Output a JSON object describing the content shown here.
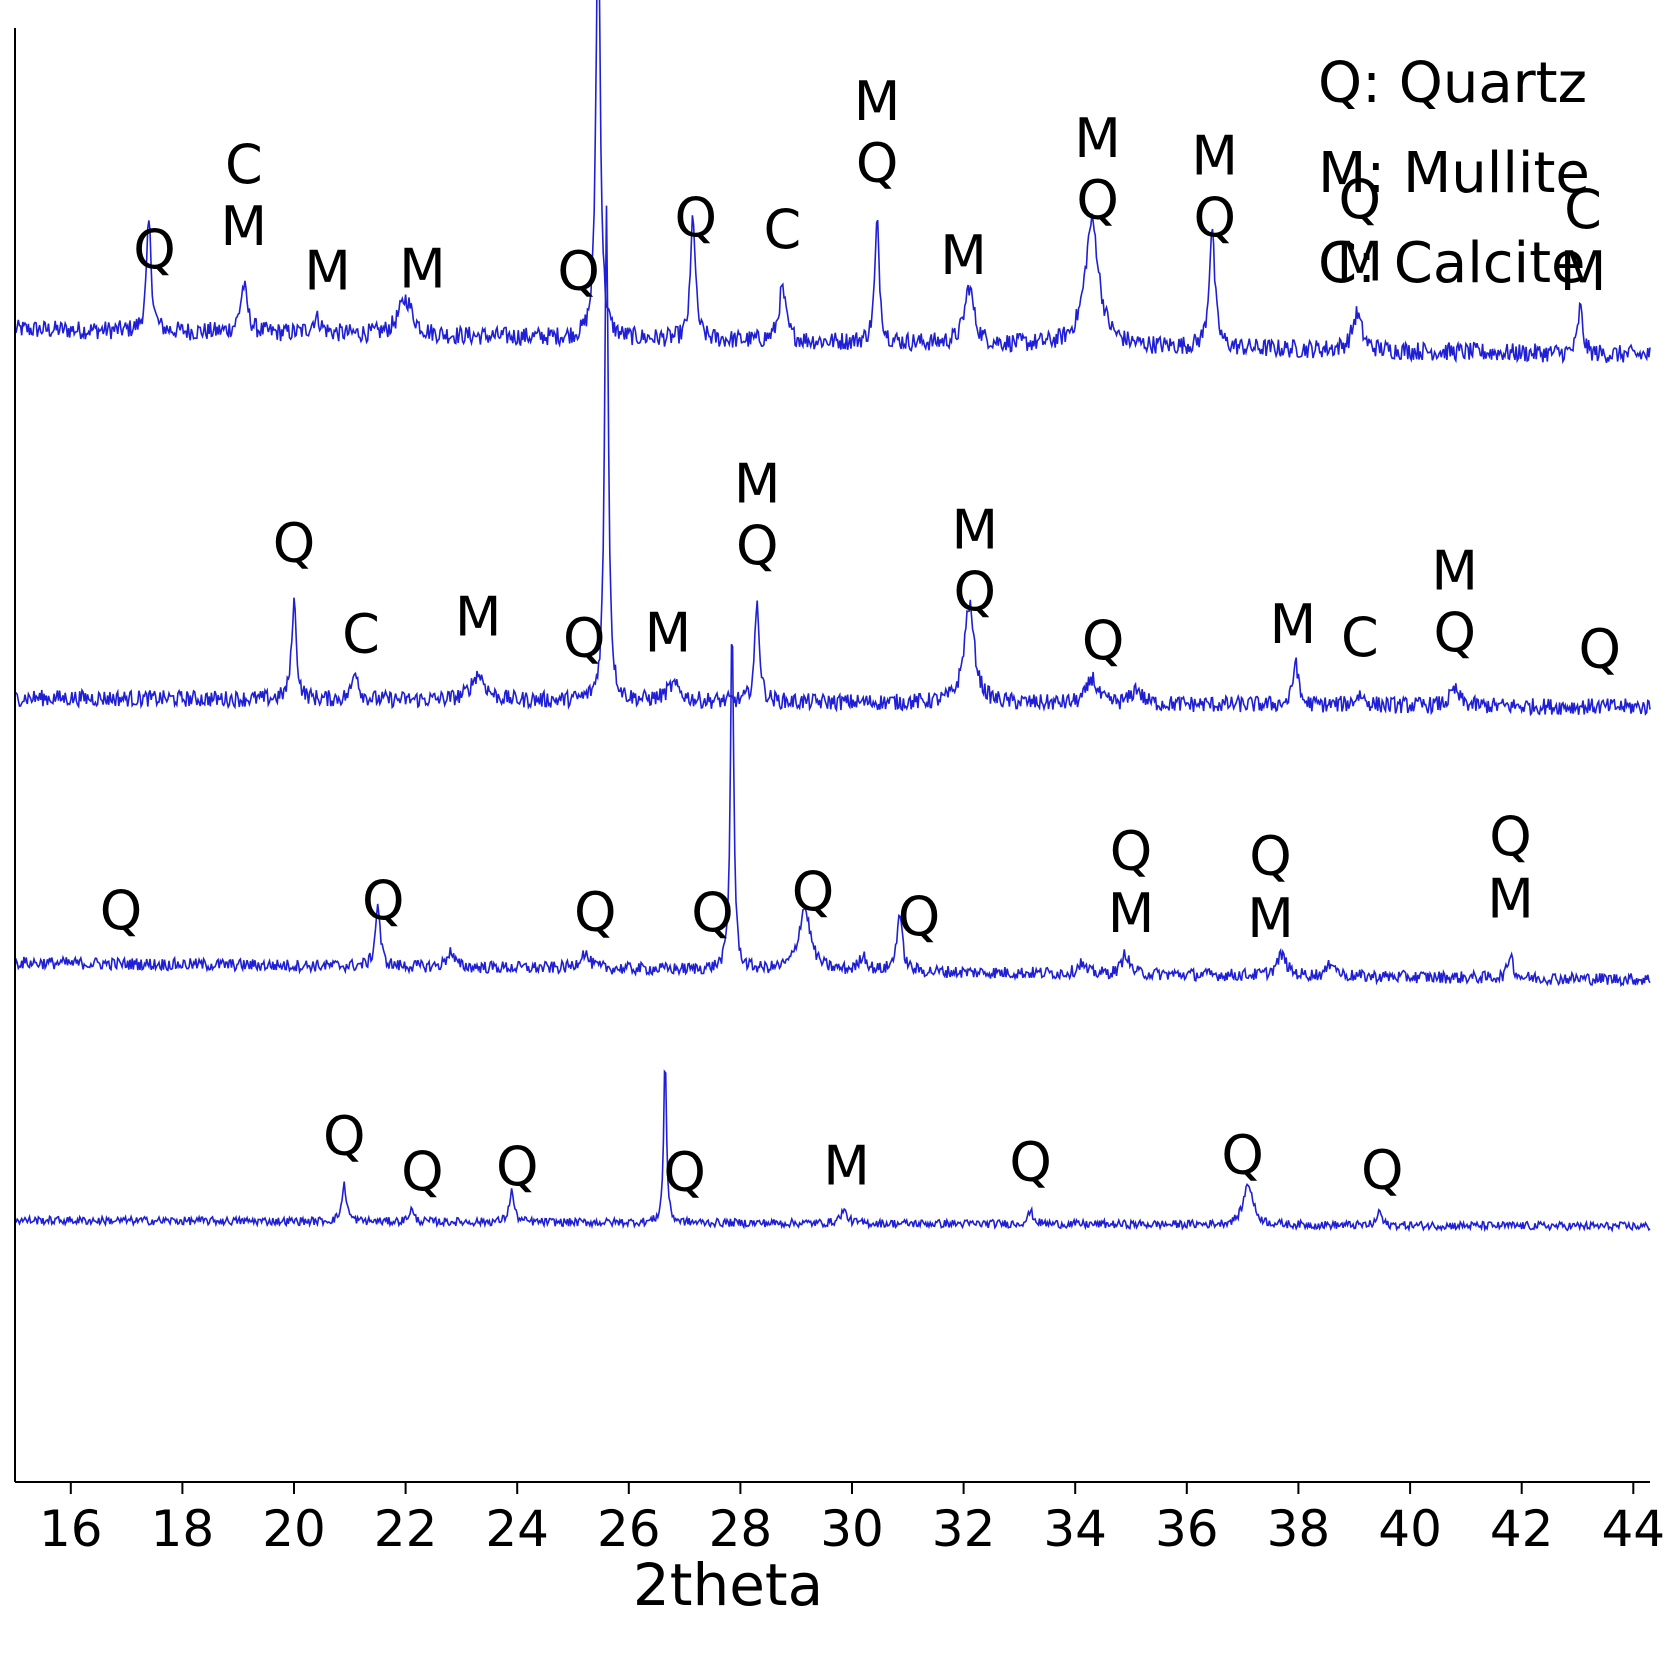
{
  "chart_data": {
    "type": "line",
    "title": "",
    "xlabel": "2theta",
    "ylabel": "",
    "xlim": [
      15,
      44.3
    ],
    "ylim": [
      0,
      14
    ],
    "x_ticks": [
      16,
      18,
      20,
      22,
      24,
      26,
      28,
      30,
      32,
      34,
      36,
      38,
      40,
      42,
      44
    ],
    "x_tick_labels": [
      "16",
      "18",
      "20",
      "22",
      "24",
      "26",
      "28",
      "30",
      "32",
      "34",
      "36",
      "38",
      "40",
      "42",
      "44"
    ],
    "grid": false,
    "y_axis_ticks_shown": false,
    "line_color": "#1f1fd6",
    "legend": {
      "placement": "top-right",
      "entries": [
        "Q: Quartz",
        "M: Mullite",
        "C: Calcite"
      ]
    },
    "series": [
      {
        "baseline": 11.1,
        "baseline_slope": -0.0085,
        "noise": 0.09,
        "peaks": [
          {
            "x": 17.4,
            "h": 1.05,
            "w": 0.1
          },
          {
            "x": 19.1,
            "h": 0.45,
            "w": 0.15
          },
          {
            "x": 20.4,
            "h": 0.15,
            "w": 0.2
          },
          {
            "x": 22.0,
            "h": 0.35,
            "w": 0.3
          },
          {
            "x": 25.45,
            "h": 4.3,
            "w": 0.09
          },
          {
            "x": 27.15,
            "h": 1.2,
            "w": 0.1
          },
          {
            "x": 28.75,
            "h": 0.5,
            "w": 0.15
          },
          {
            "x": 30.45,
            "h": 1.15,
            "w": 0.1
          },
          {
            "x": 32.1,
            "h": 0.55,
            "w": 0.2
          },
          {
            "x": 34.3,
            "h": 1.2,
            "w": 0.3
          },
          {
            "x": 36.45,
            "h": 1.15,
            "w": 0.12
          },
          {
            "x": 39.05,
            "h": 0.35,
            "w": 0.2
          },
          {
            "x": 43.05,
            "h": 0.45,
            "w": 0.1
          }
        ],
        "peak_labels": [
          {
            "x": 17.5,
            "lines": [
              "Q"
            ]
          },
          {
            "x": 19.1,
            "lines": [
              "C",
              "M"
            ]
          },
          {
            "x": 20.6,
            "lines": [
              "M"
            ]
          },
          {
            "x": 22.3,
            "lines": [
              "M"
            ]
          },
          {
            "x": 25.1,
            "lines": [
              "Q"
            ]
          },
          {
            "x": 27.2,
            "lines": [
              "Q"
            ]
          },
          {
            "x": 28.75,
            "lines": [
              "C"
            ]
          },
          {
            "x": 30.45,
            "lines": [
              "M",
              "Q"
            ]
          },
          {
            "x": 32.0,
            "lines": [
              "M"
            ]
          },
          {
            "x": 34.4,
            "lines": [
              "M",
              "Q"
            ]
          },
          {
            "x": 36.5,
            "lines": [
              "M",
              "Q"
            ]
          },
          {
            "x": 39.1,
            "lines": [
              "Q",
              "M"
            ]
          },
          {
            "x": 43.1,
            "lines": [
              "C",
              "M"
            ]
          }
        ]
      },
      {
        "baseline": 7.55,
        "baseline_slope": -0.003,
        "noise": 0.08,
        "peaks": [
          {
            "x": 20.0,
            "h": 0.95,
            "w": 0.1
          },
          {
            "x": 21.1,
            "h": 0.3,
            "w": 0.12
          },
          {
            "x": 23.3,
            "h": 0.25,
            "w": 0.3
          },
          {
            "x": 25.6,
            "h": 4.8,
            "w": 0.08
          },
          {
            "x": 26.8,
            "h": 0.15,
            "w": 0.3
          },
          {
            "x": 28.3,
            "h": 0.95,
            "w": 0.1
          },
          {
            "x": 32.1,
            "h": 0.95,
            "w": 0.22
          },
          {
            "x": 34.3,
            "h": 0.25,
            "w": 0.2
          },
          {
            "x": 35.1,
            "h": 0.15,
            "w": 0.2
          },
          {
            "x": 37.95,
            "h": 0.45,
            "w": 0.1
          },
          {
            "x": 39.1,
            "h": 0.1,
            "w": 0.2
          },
          {
            "x": 40.8,
            "h": 0.15,
            "w": 0.2
          }
        ],
        "peak_labels": [
          {
            "x": 20.0,
            "lines": [
              "Q"
            ]
          },
          {
            "x": 21.2,
            "lines": [
              "C"
            ]
          },
          {
            "x": 23.3,
            "lines": [
              "M"
            ]
          },
          {
            "x": 25.2,
            "lines": [
              "Q"
            ]
          },
          {
            "x": 26.7,
            "lines": [
              "M"
            ]
          },
          {
            "x": 28.3,
            "lines": [
              "M",
              "Q"
            ]
          },
          {
            "x": 32.2,
            "lines": [
              "M",
              "Q"
            ]
          },
          {
            "x": 34.5,
            "lines": [
              "Q"
            ]
          },
          {
            "x": 37.9,
            "lines": [
              "M"
            ]
          },
          {
            "x": 39.1,
            "lines": [
              "C"
            ]
          },
          {
            "x": 40.8,
            "lines": [
              "M",
              "Q"
            ]
          },
          {
            "x": 43.4,
            "lines": [
              "Q"
            ]
          }
        ]
      },
      {
        "baseline": 5.0,
        "baseline_slope": -0.0055,
        "noise": 0.06,
        "peaks": [
          {
            "x": 21.5,
            "h": 0.6,
            "w": 0.1
          },
          {
            "x": 22.8,
            "h": 0.15,
            "w": 0.15
          },
          {
            "x": 25.2,
            "h": 0.15,
            "w": 0.2
          },
          {
            "x": 27.85,
            "h": 3.4,
            "w": 0.07
          },
          {
            "x": 29.15,
            "h": 0.6,
            "w": 0.25
          },
          {
            "x": 30.2,
            "h": 0.15,
            "w": 0.15
          },
          {
            "x": 30.85,
            "h": 0.55,
            "w": 0.12
          },
          {
            "x": 34.1,
            "h": 0.1,
            "w": 0.15
          },
          {
            "x": 34.9,
            "h": 0.2,
            "w": 0.15
          },
          {
            "x": 37.7,
            "h": 0.2,
            "w": 0.2
          },
          {
            "x": 38.6,
            "h": 0.15,
            "w": 0.15
          },
          {
            "x": 41.8,
            "h": 0.25,
            "w": 0.1
          }
        ],
        "peak_labels": [
          {
            "x": 16.9,
            "lines": [
              "Q"
            ]
          },
          {
            "x": 21.6,
            "lines": [
              "Q"
            ]
          },
          {
            "x": 25.4,
            "lines": [
              "Q"
            ]
          },
          {
            "x": 27.5,
            "lines": [
              "Q"
            ]
          },
          {
            "x": 29.3,
            "lines": [
              "Q"
            ]
          },
          {
            "x": 31.2,
            "lines": [
              "Q"
            ]
          },
          {
            "x": 35.0,
            "lines": [
              "Q",
              "M"
            ]
          },
          {
            "x": 37.5,
            "lines": [
              "Q",
              "M"
            ]
          },
          {
            "x": 41.8,
            "lines": [
              "Q",
              "M"
            ]
          }
        ]
      },
      {
        "baseline": 2.52,
        "baseline_slope": -0.002,
        "noise": 0.04,
        "peaks": [
          {
            "x": 20.9,
            "h": 0.35,
            "w": 0.1
          },
          {
            "x": 22.1,
            "h": 0.12,
            "w": 0.1
          },
          {
            "x": 23.9,
            "h": 0.3,
            "w": 0.1
          },
          {
            "x": 26.65,
            "h": 1.6,
            "w": 0.06
          },
          {
            "x": 29.85,
            "h": 0.12,
            "w": 0.15
          },
          {
            "x": 33.2,
            "h": 0.12,
            "w": 0.12
          },
          {
            "x": 37.1,
            "h": 0.4,
            "w": 0.2
          },
          {
            "x": 39.45,
            "h": 0.15,
            "w": 0.08
          }
        ],
        "peak_labels": [
          {
            "x": 20.9,
            "lines": [
              "Q"
            ]
          },
          {
            "x": 22.3,
            "lines": [
              "Q"
            ]
          },
          {
            "x": 24.0,
            "lines": [
              "Q"
            ]
          },
          {
            "x": 27.0,
            "lines": [
              "Q"
            ]
          },
          {
            "x": 29.9,
            "lines": [
              "M"
            ]
          },
          {
            "x": 33.2,
            "lines": [
              "Q"
            ]
          },
          {
            "x": 37.0,
            "lines": [
              "Q"
            ]
          },
          {
            "x": 39.5,
            "lines": [
              "Q"
            ]
          }
        ]
      }
    ]
  }
}
